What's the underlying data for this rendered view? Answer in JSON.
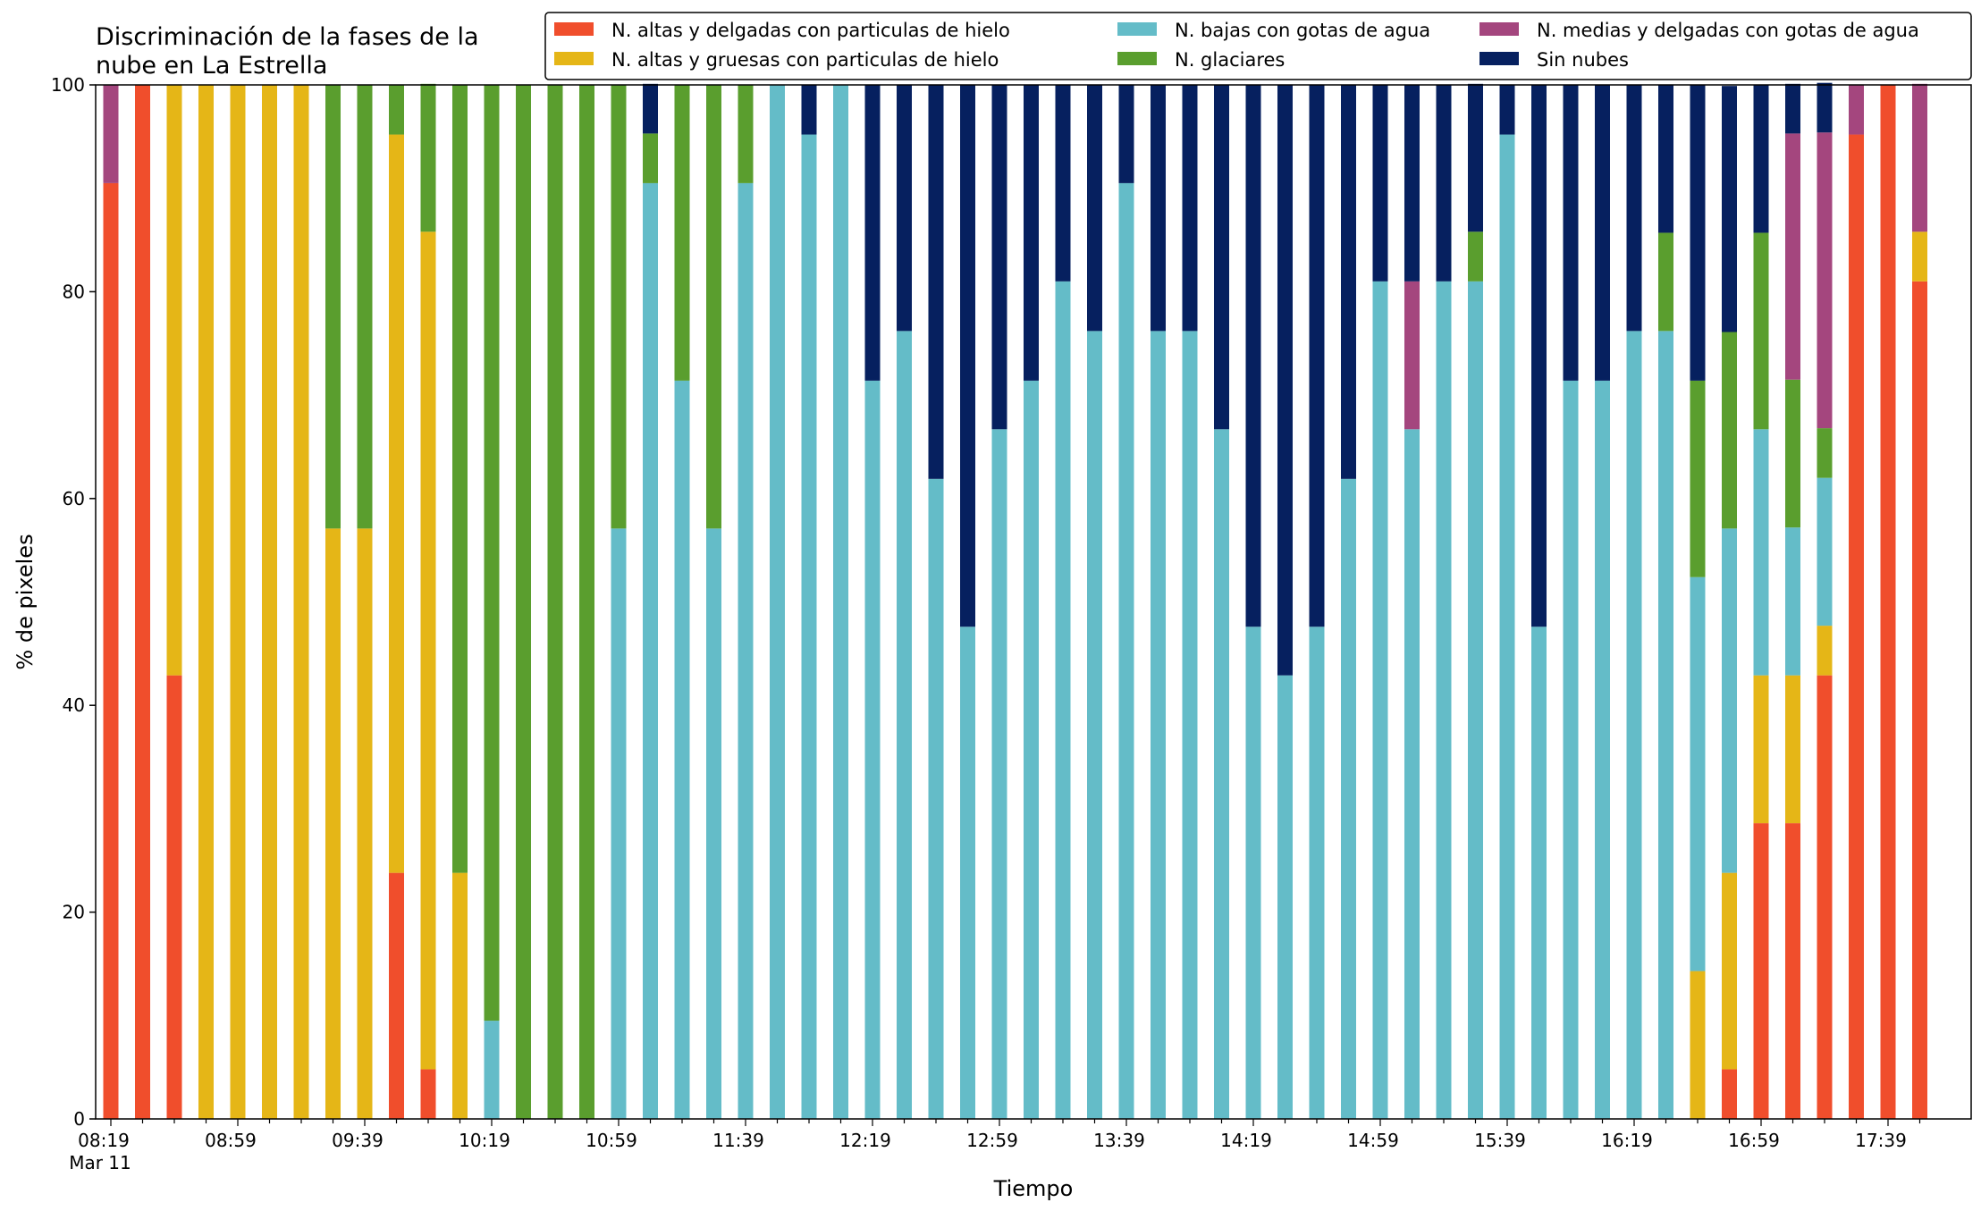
{
  "chart_data": {
    "type": "bar",
    "stacked": true,
    "title": "Discriminación de la fases de la\nnube en La Estrella",
    "xlabel": "Tiempo",
    "ylabel": "% de pixeles",
    "ylim": [
      0,
      100
    ],
    "yticks": [
      0,
      20,
      40,
      60,
      80,
      100
    ],
    "xtick_labels": [
      "08:19\nMar 11",
      "08:59",
      "09:39",
      "10:19",
      "10:59",
      "11:39",
      "12:19",
      "12:59",
      "13:39",
      "14:19",
      "14:59",
      "15:39",
      "16:19",
      "16:59",
      "17:39"
    ],
    "xtick_label_every": 4,
    "num_bars": 58,
    "legend_position": "top-right",
    "grid": false,
    "series": [
      {
        "name": "N. altas y delgadas con particulas de hielo",
        "color": "#F04E2C",
        "values": [
          90.5,
          100,
          42.9,
          0,
          0,
          0,
          0,
          0,
          0,
          23.8,
          4.8,
          0,
          0,
          0,
          0,
          0,
          0,
          0,
          0,
          0,
          0,
          0,
          0,
          0,
          0,
          0,
          0,
          0,
          0,
          0,
          0,
          0,
          0,
          0,
          0,
          0,
          0,
          0,
          0,
          0,
          0,
          0,
          0,
          0,
          0,
          0,
          0,
          0,
          0,
          0,
          0,
          4.8,
          28.6,
          28.6,
          42.9,
          95.2,
          100,
          81
        ]
      },
      {
        "name": "N. altas y gruesas con particulas de hielo",
        "color": "#E5B617",
        "values": [
          0,
          0,
          57.1,
          100,
          100,
          100,
          100,
          57.1,
          57.1,
          71.4,
          81,
          23.8,
          0,
          0,
          0,
          0,
          0,
          0,
          0,
          0,
          0,
          0,
          0,
          0,
          0,
          0,
          0,
          0,
          0,
          0,
          0,
          0,
          0,
          0,
          0,
          0,
          0,
          0,
          0,
          0,
          0,
          0,
          0,
          0,
          0,
          0,
          0,
          0,
          0,
          0,
          14.3,
          19,
          14.3,
          14.3,
          4.8,
          0,
          0,
          4.8
        ]
      },
      {
        "name": "N. bajas con gotas de agua",
        "color": "#64BCC8",
        "values": [
          0,
          0,
          0,
          0,
          0,
          0,
          0,
          0,
          0,
          0,
          0,
          0,
          9.5,
          0,
          0,
          0,
          57.1,
          90.5,
          71.4,
          57.1,
          90.5,
          100,
          95.2,
          100,
          71.4,
          76.2,
          61.9,
          47.6,
          66.7,
          71.4,
          81,
          76.2,
          90.5,
          76.2,
          76.2,
          66.7,
          47.6,
          42.9,
          47.6,
          61.9,
          81,
          66.7,
          81,
          81,
          95.2,
          47.6,
          71.4,
          71.4,
          76.2,
          76.2,
          38.1,
          33.3,
          23.8,
          14.3,
          14.3,
          0,
          0,
          0
        ]
      },
      {
        "name": "N. glaciares",
        "color": "#5A9E2E",
        "values": [
          0,
          0,
          0,
          0,
          0,
          0,
          0,
          42.9,
          42.9,
          4.8,
          14.3,
          76.2,
          90.5,
          100,
          100,
          100,
          42.9,
          4.8,
          28.6,
          42.9,
          9.5,
          0,
          0,
          0,
          0,
          0,
          0,
          0,
          0,
          0,
          0,
          0,
          0,
          0,
          0,
          0,
          0,
          0,
          0,
          0,
          0,
          0,
          0,
          4.8,
          0,
          0,
          0,
          0,
          0,
          9.5,
          19,
          19,
          19,
          14.3,
          4.8,
          0,
          0,
          0
        ]
      },
      {
        "name": "N. medias y delgadas con gotas de agua",
        "color": "#A4467E",
        "values": [
          9.5,
          0,
          0,
          0,
          0,
          0,
          0,
          0,
          0,
          0,
          0,
          0,
          0,
          0,
          0,
          0,
          0,
          0,
          0,
          0,
          0,
          0,
          0,
          0,
          0,
          0,
          0,
          0,
          0,
          0,
          0,
          0,
          0,
          0,
          0,
          0,
          0,
          0,
          0,
          0,
          0,
          14.3,
          0,
          0,
          0,
          0,
          0,
          0,
          0,
          0,
          0,
          0,
          0,
          23.8,
          28.6,
          4.8,
          0,
          14.3
        ]
      },
      {
        "name": "Sin nubes",
        "color": "#06205F",
        "values": [
          0,
          0,
          0,
          0,
          0,
          0,
          0,
          0,
          0,
          0,
          0,
          0,
          0,
          0,
          0,
          0,
          0,
          4.8,
          0,
          0,
          0,
          0,
          4.8,
          0,
          28.6,
          23.8,
          38.1,
          52.4,
          33.3,
          28.6,
          19,
          23.8,
          9.5,
          23.8,
          23.8,
          33.3,
          52.4,
          57.1,
          52.4,
          38.1,
          19,
          19,
          19,
          14.3,
          4.8,
          52.4,
          28.6,
          28.6,
          23.8,
          14.3,
          28.6,
          23.8,
          14.3,
          4.8,
          4.8,
          0,
          0,
          0
        ]
      }
    ]
  }
}
